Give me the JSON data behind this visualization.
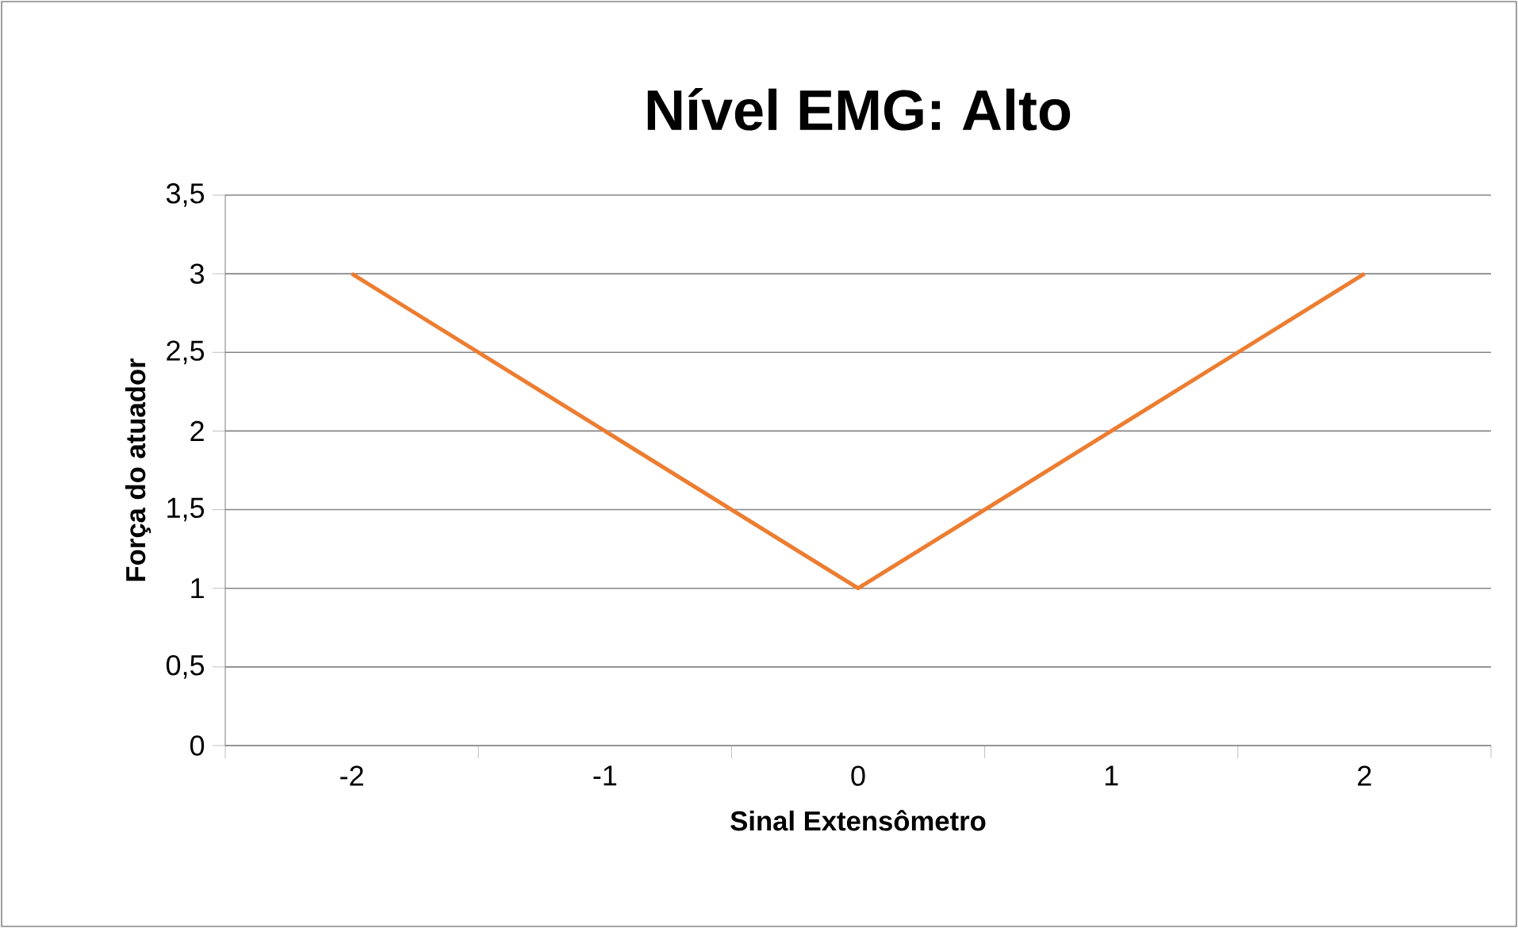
{
  "chart_data": {
    "type": "line",
    "title": "Nível EMG: Alto",
    "xlabel": "Sinal Extensômetro",
    "ylabel": "Força do atuador",
    "categories": [
      "-2",
      "-1",
      "0",
      "1",
      "2"
    ],
    "series": [
      {
        "color": "#ed7d31",
        "values": [
          3,
          2,
          1,
          2,
          3
        ]
      }
    ],
    "ylim": [
      0,
      3.5
    ],
    "yticks": [
      0,
      {
        "value": 0.5,
        "label": "0,5"
      },
      1,
      {
        "value": 1.5,
        "label": "1,5"
      },
      2,
      {
        "value": 2.5,
        "label": "2,5"
      },
      3,
      {
        "value": 3.5,
        "label": "3,5"
      }
    ],
    "grid": "y",
    "line_style": "solid"
  }
}
